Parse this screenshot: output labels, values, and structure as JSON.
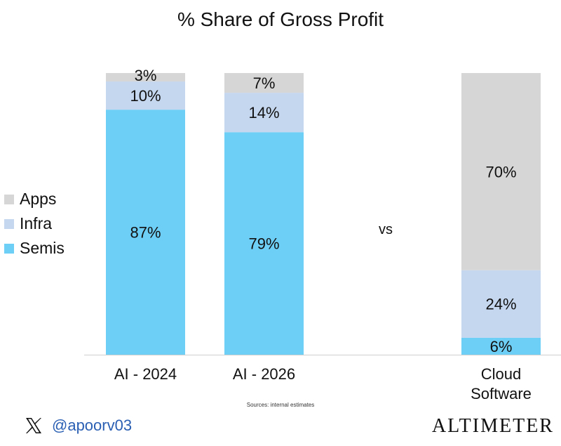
{
  "chart_data": {
    "type": "bar",
    "stacked": true,
    "normalized": true,
    "title": "% Share of Gross Profit",
    "categories": [
      "AI - 2024",
      "AI - 2026",
      "Cloud Software"
    ],
    "series": [
      {
        "name": "Semis",
        "values": [
          87,
          79,
          6
        ],
        "labels": [
          "87%",
          "79%",
          "6%"
        ],
        "color": "#6ecff6"
      },
      {
        "name": "Infra",
        "values": [
          10,
          14,
          24
        ],
        "labels": [
          "10%",
          "14%",
          "24%"
        ],
        "color": "#c5d7ef"
      },
      {
        "name": "Apps",
        "values": [
          3,
          7,
          70
        ],
        "labels": [
          "3%",
          "7%",
          "70%"
        ],
        "color": "#d6d6d6"
      }
    ],
    "ylim": [
      0,
      100
    ],
    "grid": false,
    "legend_position": "left",
    "annotation": "vs"
  },
  "legend": {
    "items": [
      {
        "label": "Apps",
        "color": "#d6d6d6"
      },
      {
        "label": "Infra",
        "color": "#c5d7ef"
      },
      {
        "label": "Semis",
        "color": "#6ecff6"
      }
    ]
  },
  "footer": {
    "source": "Sources: internal estimates",
    "handle": "@apoorv03",
    "brand": "ALTIMETER",
    "x_icon": "x-logo-icon"
  }
}
